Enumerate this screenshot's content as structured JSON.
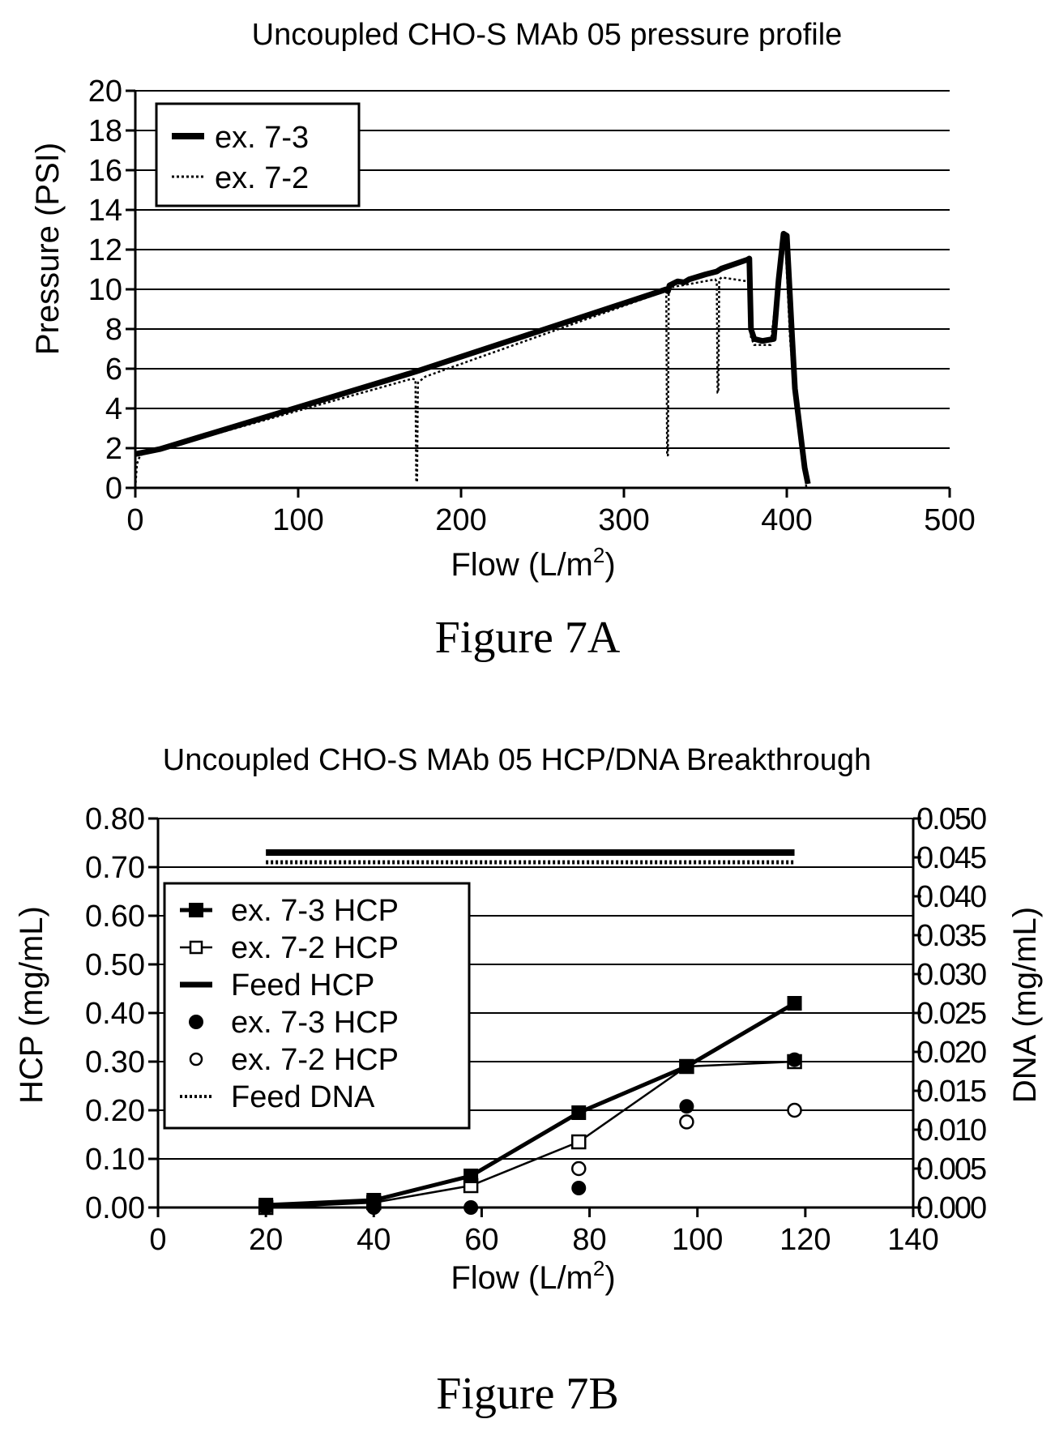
{
  "figure_a_caption": "Figure 7A",
  "figure_b_caption": "Figure 7B",
  "chart_data": [
    {
      "type": "line",
      "title": "Uncoupled CHO-S MAb 05 pressure profile",
      "xlabel": "Flow (L/m",
      "xlabel_sup": "2",
      "xlabel_end": ")",
      "ylabel": "Pressure (PSI)",
      "xlim": [
        0,
        500
      ],
      "ylim": [
        0,
        20
      ],
      "x_ticks": [
        "0",
        "100",
        "200",
        "300",
        "400",
        "500"
      ],
      "y_ticks": [
        "0",
        "2",
        "4",
        "6",
        "8",
        "10",
        "12",
        "14",
        "16",
        "18",
        "20"
      ],
      "grid": "horizontal",
      "legend_position": "top-left",
      "series": [
        {
          "name": "ex. 7-3",
          "style": "solid-thick",
          "points": [
            [
              0,
              1.7
            ],
            [
              15,
              1.95
            ],
            [
              172,
              5.85
            ],
            [
              326,
              10.0
            ],
            [
              327,
              9.9
            ],
            [
              328,
              10.2
            ],
            [
              333,
              10.4
            ],
            [
              337,
              10.35
            ],
            [
              340,
              10.5
            ],
            [
              350,
              10.75
            ],
            [
              357,
              10.9
            ],
            [
              360,
              11.05
            ],
            [
              376,
              11.5
            ],
            [
              377,
              11.55
            ],
            [
              378,
              8.0
            ],
            [
              380,
              7.5
            ],
            [
              385,
              7.4
            ],
            [
              392,
              7.5
            ],
            [
              395,
              10.5
            ],
            [
              398,
              12.8
            ],
            [
              400,
              12.7
            ],
            [
              403,
              8.0
            ],
            [
              405,
              5.0
            ],
            [
              408,
              3.0
            ],
            [
              411,
              1.0
            ],
            [
              413,
              0.2
            ]
          ]
        },
        {
          "name": "ex. 7-2",
          "style": "dotted",
          "points": [
            [
              0,
              0.0
            ],
            [
              1,
              1.2
            ],
            [
              3,
              1.65
            ],
            [
              170,
              5.5
            ],
            [
              172,
              5.45
            ],
            [
              172.5,
              0.3
            ],
            [
              173,
              0.3
            ],
            [
              173.5,
              5.3
            ],
            [
              178,
              5.6
            ],
            [
              325,
              9.9
            ],
            [
              326,
              9.95
            ],
            [
              326.5,
              1.7
            ],
            [
              327,
              1.6
            ],
            [
              327.5,
              9.8
            ],
            [
              329,
              10.1
            ],
            [
              356,
              10.5
            ],
            [
              357,
              10.4
            ],
            [
              357.5,
              4.8
            ],
            [
              358,
              4.8
            ],
            [
              358.5,
              10.5
            ],
            [
              360,
              10.6
            ],
            [
              376,
              10.4
            ],
            [
              377,
              10.5
            ],
            [
              378,
              7.6
            ],
            [
              380,
              7.2
            ],
            [
              390,
              7.2
            ],
            [
              394,
              10.0
            ],
            [
              397,
              12.5
            ],
            [
              399,
              12.6
            ],
            [
              402,
              7.5
            ],
            [
              405,
              4.5
            ],
            [
              408,
              2.5
            ],
            [
              411,
              0.8
            ],
            [
              412,
              0.0
            ]
          ]
        }
      ]
    },
    {
      "type": "line",
      "title": "Uncoupled CHO-S MAb 05 HCP/DNA Breakthrough",
      "xlabel": "Flow (L/m",
      "xlabel_sup": "2",
      "xlabel_end": ")",
      "ylabel": "HCP (mg/mL)",
      "y2label": "DNA (mg/mL)",
      "xlim": [
        0,
        140
      ],
      "ylim": [
        0,
        0.8
      ],
      "y2lim": [
        0,
        0.05
      ],
      "x_ticks": [
        "0",
        "20",
        "40",
        "60",
        "80",
        "100",
        "120",
        "140"
      ],
      "y_ticks": [
        "0.00",
        "0.10",
        "0.20",
        "0.30",
        "0.40",
        "0.50",
        "0.60",
        "0.70",
        "0.80"
      ],
      "y2_ticks": [
        "0.000",
        "0.005",
        "0.010",
        "0.015",
        "0.020",
        "0.025",
        "0.030",
        "0.035",
        "0.040",
        "0.045",
        "0.050"
      ],
      "grid": "horizontal",
      "legend_position": "left",
      "series": [
        {
          "name": "ex. 7-3 HCP",
          "marker": "filled-square",
          "line": "solid-thick",
          "axis": "left",
          "x": [
            20,
            40,
            58,
            78,
            98,
            118
          ],
          "y": [
            0.005,
            0.015,
            0.065,
            0.195,
            0.29,
            0.42
          ]
        },
        {
          "name": "ex. 7-2 HCP",
          "marker": "open-square",
          "line": "solid-thin",
          "axis": "left",
          "x": [
            20,
            40,
            58,
            78,
            98,
            118
          ],
          "y": [
            0.0,
            0.01,
            0.045,
            0.135,
            0.29,
            0.3
          ]
        },
        {
          "name": "Feed HCP",
          "marker": "none",
          "line": "solid-thick",
          "axis": "left",
          "x": [
            20,
            118
          ],
          "y": [
            0.73,
            0.73
          ]
        },
        {
          "name": "ex. 7-3 HCP",
          "marker": "filled-circle",
          "line": "none",
          "axis": "right",
          "x": [
            20,
            40,
            58,
            78,
            98,
            118
          ],
          "y": [
            0.0,
            0.0,
            0.0,
            0.0025,
            0.013,
            0.019
          ]
        },
        {
          "name": "ex. 7-2 HCP",
          "marker": "open-circle",
          "line": "none",
          "axis": "right",
          "x": [
            78,
            98,
            118
          ],
          "y": [
            0.005,
            0.011,
            0.0125
          ]
        },
        {
          "name": "Feed DNA",
          "marker": "none",
          "line": "dotted",
          "axis": "left",
          "x": [
            20,
            118
          ],
          "y": [
            0.71,
            0.71
          ]
        }
      ]
    }
  ]
}
